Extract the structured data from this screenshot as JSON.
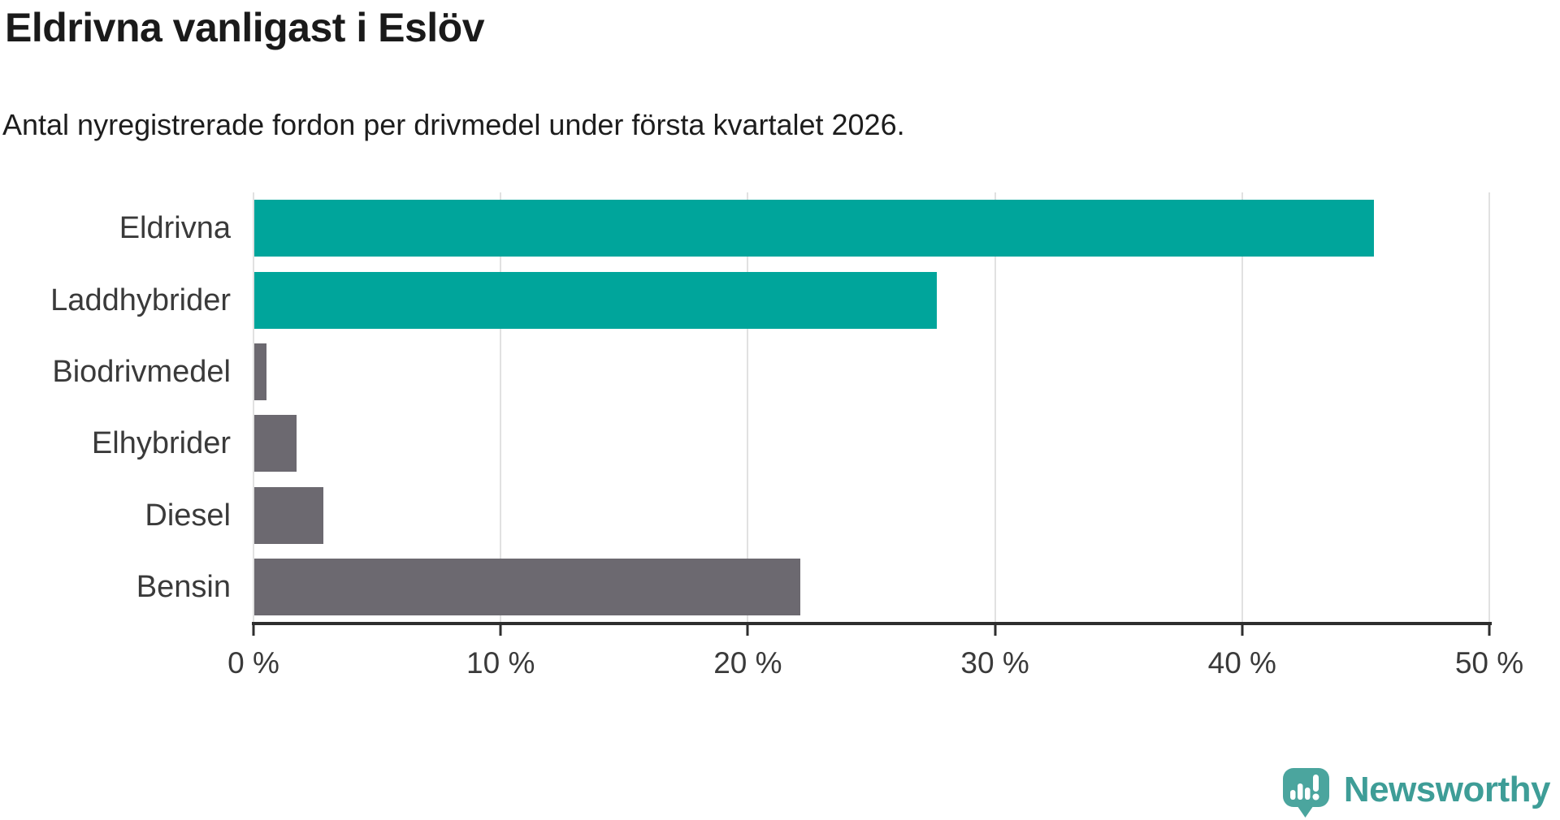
{
  "chart_data": {
    "type": "bar",
    "orientation": "horizontal",
    "title": "Eldrivna vanligast i Eslöv",
    "subtitle": "Antal nyregistrerade fordon per drivmedel under första kvartalet 2026.",
    "categories": [
      "Eldrivna",
      "Laddhybrider",
      "Biodrivmedel",
      "Elhybrider",
      "Diesel",
      "Bensin"
    ],
    "values": [
      45.3,
      27.6,
      0.5,
      1.7,
      2.8,
      22.1
    ],
    "unit": "%",
    "xlim": [
      0,
      50
    ],
    "x_ticks": [
      "0 %",
      "10 %",
      "20 %",
      "30 %",
      "40 %",
      "50 %"
    ],
    "grid": "vertical-light",
    "legend": "none",
    "bar_colors": [
      "#00A59B",
      "#00A59B",
      "#6C6970",
      "#6C6970",
      "#6C6970",
      "#6C6970"
    ],
    "highlight_color": "#00A59B",
    "muted_color": "#6C6970",
    "gridline_color": "#E1E1E1",
    "axis_color": "#2E2E2E",
    "label_color": "#3A3A3A"
  },
  "branding": {
    "logo_text": "Newsworthy",
    "logo_text_color": "#3E9D97",
    "logo_mark_color": "#4BA59E"
  }
}
